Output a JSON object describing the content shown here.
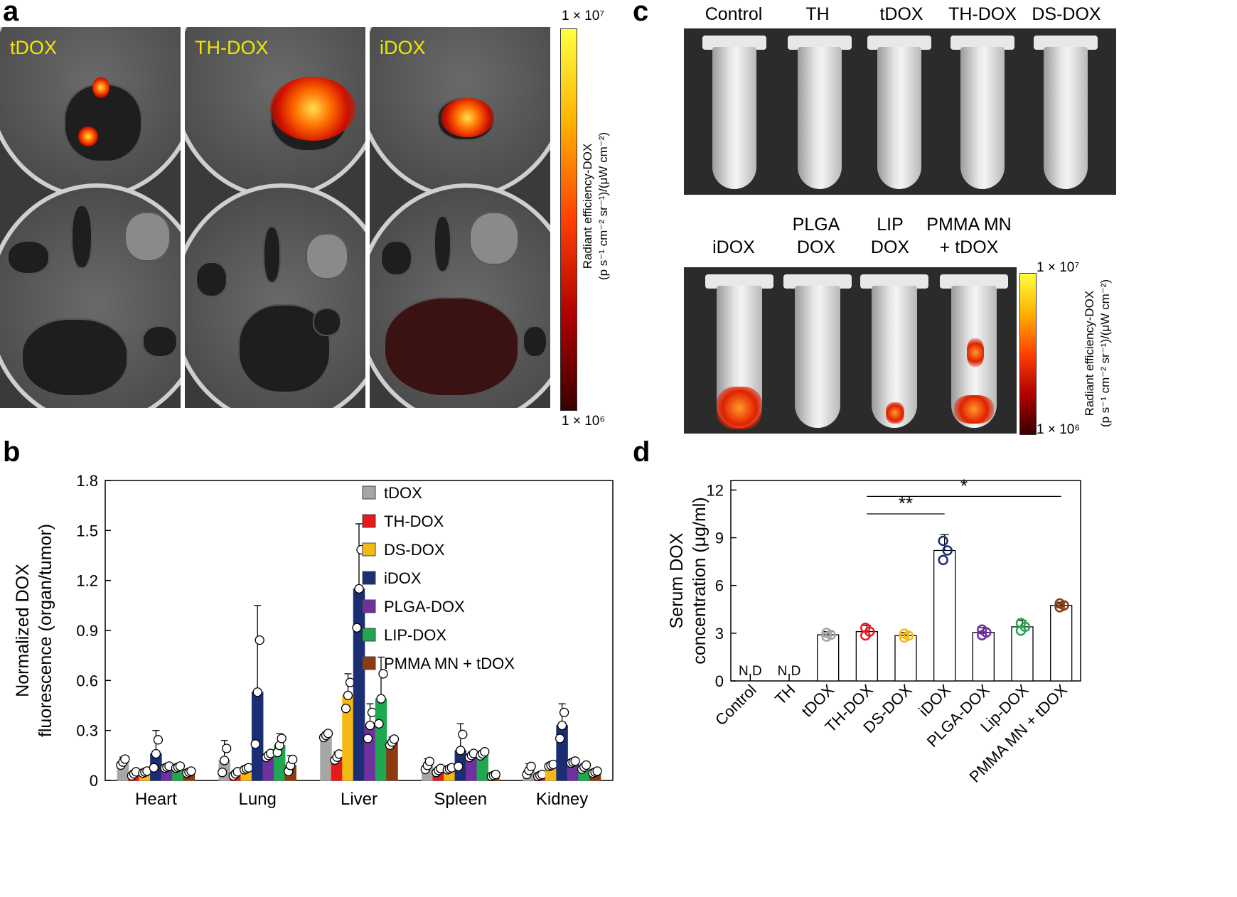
{
  "panels": {
    "a": {
      "letter": "a",
      "tiles": [
        "tDOX",
        "TH-DOX",
        "iDOX"
      ],
      "colorbar": {
        "max_label": "1 × 10⁷",
        "min_label": "1 × 10⁶",
        "title_line1": "Radiant efficiency-DOX",
        "title_line2": "(p s⁻¹ cm⁻² sr⁻¹)/(μW cm⁻²)"
      }
    },
    "b": {
      "letter": "b"
    },
    "c": {
      "letter": "c",
      "top_row_labels": [
        "Control",
        "TH",
        "tDOX",
        "TH-DOX",
        "DS-DOX"
      ],
      "bottom_row_labels": [
        {
          "line1": "",
          "line2": "iDOX"
        },
        {
          "line1": "PLGA",
          "line2": "DOX"
        },
        {
          "line1": "LIP",
          "line2": "DOX"
        },
        {
          "line1": "PMMA MN",
          "line2": "+ tDOX"
        }
      ],
      "colorbar": {
        "max_label": "1 × 10⁷",
        "min_label": "1 × 10⁶",
        "title_line1": "Radiant efficiency-DOX",
        "title_line2": "(p s⁻¹ cm⁻² sr⁻¹)/(μW cm⁻²)"
      }
    },
    "d": {
      "letter": "d"
    }
  },
  "chart_data": [
    {
      "id": "b",
      "type": "bar",
      "ylabel_line1": "Normalized DOX",
      "ylabel_line2": "fluorescence (organ/tumor)",
      "ylim": [
        0,
        1.8
      ],
      "yticks": [
        "0",
        "0.3",
        "0.6",
        "0.9",
        "1.2",
        "1.5",
        "1.8"
      ],
      "ytick_values": [
        0,
        0.3,
        0.6,
        0.9,
        1.2,
        1.5,
        1.8
      ],
      "categories": [
        "Heart",
        "Lung",
        "Liver",
        "Spleen",
        "Kidney"
      ],
      "legend_position": "top-right",
      "series": [
        {
          "name": "tDOX",
          "color": "#a6a6a6",
          "values": [
            0.11,
            0.12,
            0.27,
            0.09,
            0.06
          ],
          "errors": [
            0.03,
            0.12,
            0.02,
            0.04,
            0.04
          ]
        },
        {
          "name": "TH-DOX",
          "color": "#e8191b",
          "values": [
            0.04,
            0.04,
            0.14,
            0.06,
            0.03
          ],
          "errors": [
            0.02,
            0.02,
            0.03,
            0.02,
            0.01
          ]
        },
        {
          "name": "DS-DOX",
          "color": "#f5b915",
          "values": [
            0.05,
            0.07,
            0.51,
            0.07,
            0.09
          ],
          "errors": [
            0.01,
            0.01,
            0.13,
            0.01,
            0.01
          ]
        },
        {
          "name": "iDOX",
          "color": "#1b2e73",
          "values": [
            0.16,
            0.53,
            1.15,
            0.18,
            0.33
          ],
          "errors": [
            0.14,
            0.52,
            0.39,
            0.16,
            0.13
          ]
        },
        {
          "name": "PLGA-DOX",
          "color": "#7030a0",
          "values": [
            0.08,
            0.15,
            0.33,
            0.15,
            0.11
          ],
          "errors": [
            0.01,
            0.02,
            0.13,
            0.02,
            0.01
          ]
        },
        {
          "name": "LIP-DOX",
          "color": "#1fa84f",
          "values": [
            0.08,
            0.21,
            0.49,
            0.16,
            0.08
          ],
          "errors": [
            0.01,
            0.07,
            0.25,
            0.02,
            0.02
          ]
        },
        {
          "name": "PMMA MN + tDOX",
          "color": "#8b3a12",
          "values": [
            0.05,
            0.09,
            0.23,
            0.03,
            0.05
          ],
          "errors": [
            0.01,
            0.06,
            0.03,
            0.01,
            0.01
          ]
        }
      ]
    },
    {
      "id": "d",
      "type": "bar",
      "ylabel_line1": "Serum DOX",
      "ylabel_line2": "concentration (μg/ml)",
      "ylim": [
        0,
        12.6
      ],
      "yticks": [
        "0",
        "3",
        "6",
        "9",
        "12"
      ],
      "ytick_values": [
        0,
        3,
        6,
        9,
        12
      ],
      "categories": [
        "Control",
        "TH",
        "tDOX",
        "TH-DOX",
        "DS-DOX",
        "iDOX",
        "PLGA-DOX",
        "Lip-DOX",
        "PMMA MN + tDOX"
      ],
      "values": [
        null,
        null,
        2.9,
        3.1,
        2.85,
        8.2,
        3.05,
        3.4,
        4.75
      ],
      "errors": [
        0,
        0,
        0.2,
        0.4,
        0.2,
        1.0,
        0.3,
        0.4,
        0.2
      ],
      "point_colors": [
        "#000000",
        "#000000",
        "#a6a6a6",
        "#e8191b",
        "#f5b915",
        "#1b2e73",
        "#7030a0",
        "#1fa84f",
        "#8b3a12"
      ],
      "nd_label": "N.D",
      "significance": [
        {
          "from": "TH-DOX",
          "to": "iDOX",
          "label": "**"
        },
        {
          "from": "TH-DOX",
          "to": "PMMA MN + tDOX",
          "label": "*"
        }
      ]
    }
  ]
}
